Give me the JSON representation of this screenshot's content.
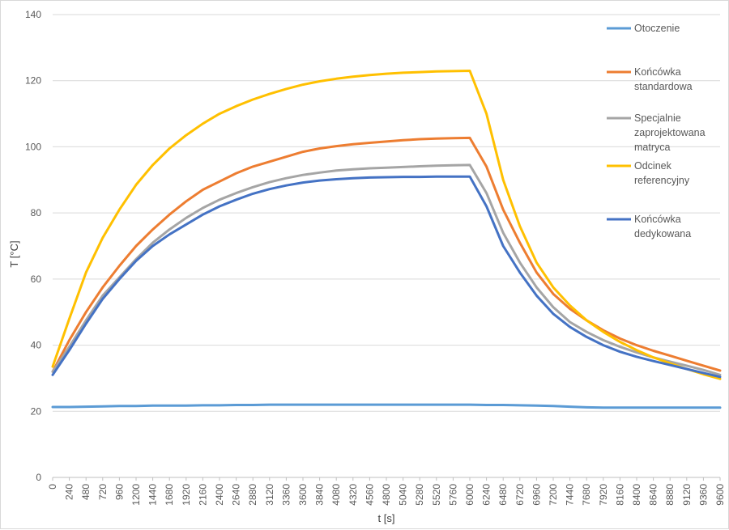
{
  "chart_data": {
    "type": "line",
    "title": "",
    "xlabel": "t [s]",
    "ylabel": "T [°C]",
    "xlim": [
      0,
      9600
    ],
    "ylim": [
      0,
      140
    ],
    "grid": true,
    "legend_position": "right",
    "yticks": [
      "0",
      "20",
      "40",
      "60",
      "80",
      "100",
      "120",
      "140"
    ],
    "xticks": [
      "0",
      "240",
      "480",
      "720",
      "960",
      "1200",
      "1440",
      "1680",
      "1920",
      "2160",
      "2400",
      "2640",
      "2880",
      "3120",
      "3360",
      "3600",
      "3840",
      "4080",
      "4320",
      "4560",
      "4800",
      "5040",
      "5280",
      "5520",
      "5760",
      "6000",
      "6240",
      "6480",
      "6720",
      "6960",
      "7200",
      "7440",
      "7680",
      "7920",
      "8160",
      "8400",
      "8640",
      "8880",
      "9120",
      "9360",
      "9600"
    ],
    "x": [
      0,
      240,
      480,
      720,
      960,
      1200,
      1440,
      1680,
      1920,
      2160,
      2400,
      2640,
      2880,
      3120,
      3360,
      3600,
      3840,
      4080,
      4320,
      4560,
      4800,
      5040,
      5280,
      5520,
      5760,
      6000,
      6240,
      6480,
      6720,
      6960,
      7200,
      7440,
      7680,
      7920,
      8160,
      8400,
      8640,
      8880,
      9120,
      9360,
      9600
    ],
    "series": [
      {
        "name": "Otoczenie",
        "legend_lines": [
          "Otoczenie"
        ],
        "color": "#5b9bd5",
        "values": [
          21.3,
          21.3,
          21.4,
          21.5,
          21.6,
          21.6,
          21.7,
          21.7,
          21.7,
          21.8,
          21.8,
          21.9,
          21.9,
          22.0,
          22.0,
          22.0,
          22.0,
          22.0,
          22.0,
          22.0,
          22.0,
          22.0,
          22.0,
          22.0,
          22.0,
          22.0,
          21.9,
          21.9,
          21.8,
          21.7,
          21.6,
          21.4,
          21.2,
          21.1,
          21.1,
          21.1,
          21.1,
          21.1,
          21.1,
          21.1,
          21.1
        ]
      },
      {
        "name": "Końcówka standardowa",
        "legend_lines": [
          "Końcówka",
          "standardowa"
        ],
        "color": "#ed7d31",
        "values": [
          32.0,
          41.5,
          50.0,
          57.5,
          64.0,
          70.0,
          75.0,
          79.5,
          83.5,
          87.0,
          89.5,
          92.0,
          94.0,
          95.5,
          97.0,
          98.5,
          99.5,
          100.2,
          100.8,
          101.2,
          101.6,
          102.0,
          102.3,
          102.5,
          102.6,
          102.7,
          94.0,
          81.0,
          71.0,
          62.0,
          55.5,
          51.0,
          47.5,
          44.5,
          42.0,
          40.0,
          38.3,
          36.8,
          35.3,
          33.8,
          32.3
        ]
      },
      {
        "name": "Specjalnie zaprojektowana matryca",
        "legend_lines": [
          "Specjalnie",
          "zaprojektowana",
          "matryca"
        ],
        "color": "#a5a5a5",
        "values": [
          32.0,
          39.5,
          47.5,
          55.0,
          60.5,
          66.0,
          71.0,
          75.0,
          78.5,
          81.5,
          84.0,
          86.0,
          87.8,
          89.3,
          90.5,
          91.5,
          92.2,
          92.8,
          93.2,
          93.5,
          93.7,
          93.9,
          94.1,
          94.3,
          94.4,
          94.5,
          86.0,
          74.0,
          65.0,
          57.5,
          51.5,
          47.0,
          44.0,
          41.5,
          39.5,
          37.8,
          36.3,
          35.0,
          33.8,
          32.5,
          31.0
        ]
      },
      {
        "name": "Odcinek referencyjny",
        "legend_lines": [
          "Odcinek",
          "referencyjny"
        ],
        "color": "#ffc000",
        "values": [
          33.5,
          48.0,
          62.0,
          72.5,
          81.0,
          88.5,
          94.5,
          99.5,
          103.5,
          107.0,
          110.0,
          112.3,
          114.3,
          116.0,
          117.5,
          118.8,
          119.8,
          120.6,
          121.2,
          121.7,
          122.1,
          122.4,
          122.6,
          122.8,
          122.9,
          123.0,
          110.0,
          90.0,
          76.0,
          65.0,
          57.5,
          52.0,
          47.5,
          44.0,
          41.0,
          38.5,
          36.3,
          34.5,
          32.8,
          31.2,
          29.8
        ]
      },
      {
        "name": "Końcówka dedykowana",
        "legend_lines": [
          "Końcówka",
          "dedykowana"
        ],
        "color": "#4472c4",
        "values": [
          31.0,
          38.5,
          46.5,
          54.0,
          60.0,
          65.5,
          70.0,
          73.5,
          76.5,
          79.5,
          82.0,
          84.0,
          85.8,
          87.2,
          88.3,
          89.2,
          89.8,
          90.2,
          90.5,
          90.7,
          90.8,
          90.9,
          90.9,
          91.0,
          91.0,
          91.0,
          82.0,
          70.0,
          62.0,
          55.0,
          49.5,
          45.5,
          42.5,
          40.0,
          38.0,
          36.5,
          35.2,
          34.0,
          32.8,
          31.6,
          30.4
        ]
      }
    ]
  }
}
